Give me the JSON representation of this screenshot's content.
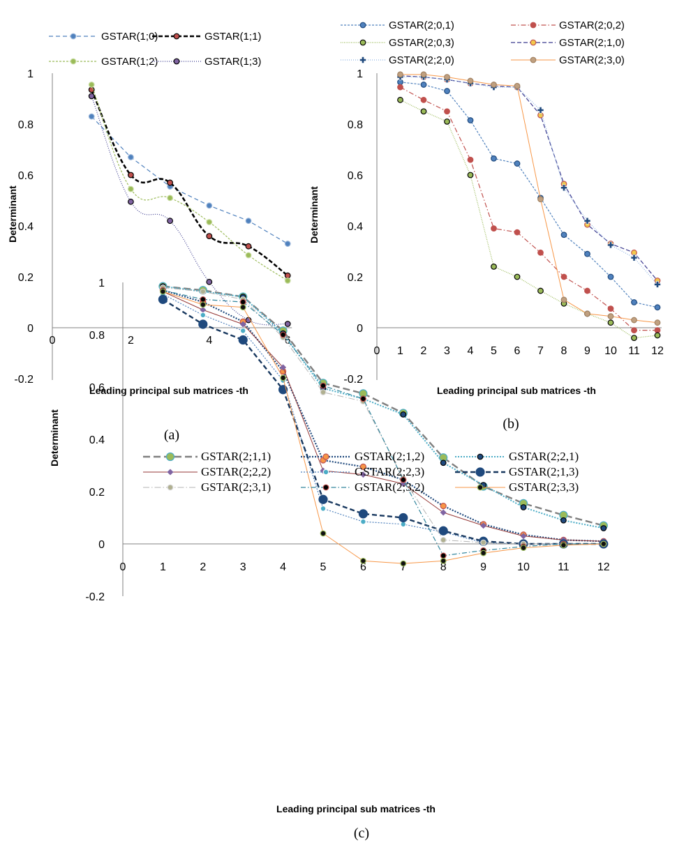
{
  "chart_data": [
    {
      "id": "a",
      "type": "line",
      "caption": "(a)",
      "xlabel": "Leading principal sub matrices -th",
      "ylabel": "Determinant",
      "xlim": [
        0,
        6
      ],
      "ylim": [
        -0.2,
        1
      ],
      "xticks": [
        0,
        2,
        4,
        6
      ],
      "yticks": [
        -0.2,
        0,
        0.2,
        0.4,
        0.6,
        0.8,
        1
      ],
      "x": [
        1,
        2,
        3,
        4,
        5,
        6
      ],
      "legend_position": "top",
      "series": [
        {
          "name": "GSTAR(1;0)",
          "color": "#4f81bd",
          "values": [
            0.83,
            0.67,
            0.555,
            0.48,
            0.42,
            0.33
          ]
        },
        {
          "name": "GSTAR(1;1)",
          "color": "#000000",
          "values": [
            0.935,
            0.6,
            0.57,
            0.36,
            0.32,
            0.205
          ]
        },
        {
          "name": "GSTAR(1;2)",
          "color": "#9bbb59",
          "values": [
            0.955,
            0.545,
            0.51,
            0.415,
            0.285,
            0.185
          ]
        },
        {
          "name": "GSTAR(1;3)",
          "color": "#3b3a8f",
          "values": [
            0.91,
            0.495,
            0.42,
            0.18,
            0.03,
            0.015
          ]
        }
      ]
    },
    {
      "id": "b",
      "type": "line",
      "caption": "(b)",
      "xlabel": "Leading principal sub matrices -th",
      "ylabel": "Determinant",
      "xlim": [
        0,
        12
      ],
      "ylim": [
        -0.2,
        1
      ],
      "xticks": [
        0,
        1,
        2,
        3,
        4,
        5,
        6,
        7,
        8,
        9,
        10,
        11,
        12
      ],
      "yticks": [
        -0.2,
        0,
        0.2,
        0.4,
        0.6,
        0.8,
        1
      ],
      "x": [
        1,
        2,
        3,
        4,
        5,
        6,
        7,
        8,
        9,
        10,
        11,
        12
      ],
      "legend_position": "top",
      "series": [
        {
          "name": "GSTAR(2;0,1)",
          "color": "#4f81bd",
          "values": [
            0.965,
            0.955,
            0.93,
            0.815,
            0.665,
            0.645,
            0.51,
            0.365,
            0.29,
            0.2,
            0.1,
            0.08
          ]
        },
        {
          "name": "GSTAR(2;0,2)",
          "color": "#c0504d",
          "values": [
            0.945,
            0.895,
            0.85,
            0.66,
            0.39,
            0.375,
            0.295,
            0.2,
            0.145,
            0.075,
            -0.01,
            -0.01
          ]
        },
        {
          "name": "GSTAR(2;0,3)",
          "color": "#9bbb59",
          "values": [
            0.895,
            0.85,
            0.81,
            0.6,
            0.24,
            0.2,
            0.145,
            0.095,
            0.055,
            0.02,
            -0.04,
            -0.03
          ]
        },
        {
          "name": "GSTAR(2;1,0)",
          "color": "#3b3a8f",
          "values": [
            0.99,
            0.985,
            0.975,
            0.96,
            0.95,
            0.945,
            0.835,
            0.565,
            0.405,
            0.33,
            0.295,
            0.185
          ]
        },
        {
          "name": "GSTAR(2;2,0)",
          "color": "#8eb4e3",
          "values": [
            0.985,
            0.985,
            0.975,
            0.96,
            0.945,
            0.945,
            0.855,
            0.55,
            0.42,
            0.325,
            0.275,
            0.17
          ]
        },
        {
          "name": "GSTAR(2;3,0)",
          "color": "#f79646",
          "values": [
            0.995,
            0.995,
            0.985,
            0.97,
            0.955,
            0.95,
            0.505,
            0.11,
            0.055,
            0.045,
            0.03,
            0.02
          ]
        }
      ]
    },
    {
      "id": "c",
      "type": "line",
      "caption": "(c)",
      "xlabel": "Leading principal sub matrices -th",
      "ylabel": "Determinant",
      "xlim": [
        0,
        12
      ],
      "ylim": [
        -0.2,
        1
      ],
      "xticks": [
        0,
        1,
        2,
        3,
        4,
        5,
        6,
        7,
        8,
        9,
        10,
        11,
        12
      ],
      "yticks": [
        -0.2,
        0,
        0.2,
        0.4,
        0.6,
        0.8,
        1
      ],
      "x": [
        1,
        2,
        3,
        4,
        5,
        6,
        7,
        8,
        9,
        10,
        11,
        12
      ],
      "legend_position": "top",
      "series": [
        {
          "name": "GSTAR(2;1,1)",
          "color": "#4bacc6",
          "values": [
            0.985,
            0.97,
            0.945,
            0.815,
            0.615,
            0.575,
            0.5,
            0.33,
            0.22,
            0.155,
            0.11,
            0.07
          ]
        },
        {
          "name": "GSTAR(2;1,2)",
          "color": "#f79646",
          "values": [
            0.97,
            0.925,
            0.85,
            0.66,
            0.32,
            0.295,
            0.245,
            0.145,
            0.075,
            0.035,
            0.015,
            0.01
          ]
        },
        {
          "name": "GSTAR(2;2,1)",
          "color": "#1f497d",
          "values": [
            0.985,
            0.965,
            0.945,
            0.805,
            0.595,
            0.555,
            0.495,
            0.31,
            0.225,
            0.14,
            0.09,
            0.06
          ]
        },
        {
          "name": "GSTAR(2;2,2)",
          "color": "#7030a0",
          "values": [
            0.965,
            0.895,
            0.84,
            0.675,
            0.28,
            0.265,
            0.23,
            0.12,
            0.07,
            0.03,
            0.015,
            0.01
          ]
        },
        {
          "name": "GSTAR(2;2,3)",
          "color": "#4bacc6",
          "values": [
            0.955,
            0.875,
            0.815,
            0.625,
            0.135,
            0.085,
            0.075,
            0.045,
            0.005,
            0,
            0,
            0
          ]
        },
        {
          "name": "GSTAR(2;1,3)",
          "color": "#17375e",
          "values": [
            0.935,
            0.84,
            0.78,
            0.59,
            0.17,
            0.115,
            0.1,
            0.05,
            0.01,
            0,
            0,
            0
          ]
        },
        {
          "name": "GSTAR(2;3,1)",
          "color": "#b3b3b3",
          "values": [
            0.98,
            0.965,
            0.935,
            0.79,
            0.58,
            0.545,
            0.25,
            0.015,
            0.005,
            0,
            0,
            0
          ]
        },
        {
          "name": "GSTAR(2;3,2)",
          "color": "#31859c",
          "values": [
            0.97,
            0.935,
            0.925,
            0.8,
            0.605,
            0.555,
            0.245,
            -0.045,
            -0.025,
            -0.01,
            0,
            0
          ]
        },
        {
          "name": "GSTAR(2;3,3)",
          "color": "#f79646",
          "values": [
            0.965,
            0.915,
            0.905,
            0.635,
            0.04,
            -0.065,
            -0.075,
            -0.065,
            -0.035,
            -0.015,
            -0.005,
            0
          ]
        }
      ]
    }
  ]
}
